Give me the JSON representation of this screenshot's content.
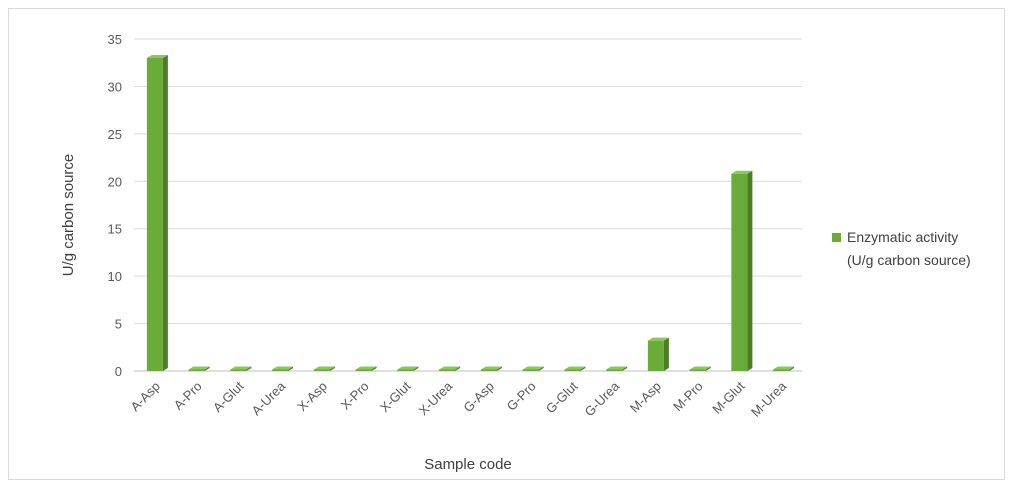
{
  "chart_data": {
    "type": "bar",
    "categories": [
      "A-Asp",
      "A-Pro",
      "A-Glut",
      "A-Urea",
      "X-Asp",
      "X-Pro",
      "X-Glut",
      "X-Urea",
      "G-Asp",
      "G-Pro",
      "G-Glut",
      "G-Urea",
      "M-Asp",
      "M-Pro",
      "M-Glut",
      "M-Urea"
    ],
    "series": [
      {
        "name": "Enzymatic activity (U/g carbon source)",
        "values": [
          33.0,
          0,
          0,
          0,
          0,
          0,
          0,
          0,
          0,
          0,
          0,
          0,
          3.2,
          0,
          20.8,
          0
        ]
      }
    ],
    "title": "",
    "xlabel": "Sample code",
    "ylabel": "U/g carbon source",
    "ylim": [
      0,
      35
    ],
    "yticks": [
      0,
      5,
      10,
      15,
      20,
      25,
      30,
      35
    ],
    "grid": true,
    "legend_position": "right",
    "legend_lines": [
      "Enzymatic activity",
      "(U/g carbon source)"
    ],
    "colors": {
      "bar_front": "#6aab3a",
      "bar_side": "#4a7d25",
      "bar_top": "#8cc65e",
      "grid": "#d9d9d9",
      "axis": "#bfbfbf"
    }
  }
}
